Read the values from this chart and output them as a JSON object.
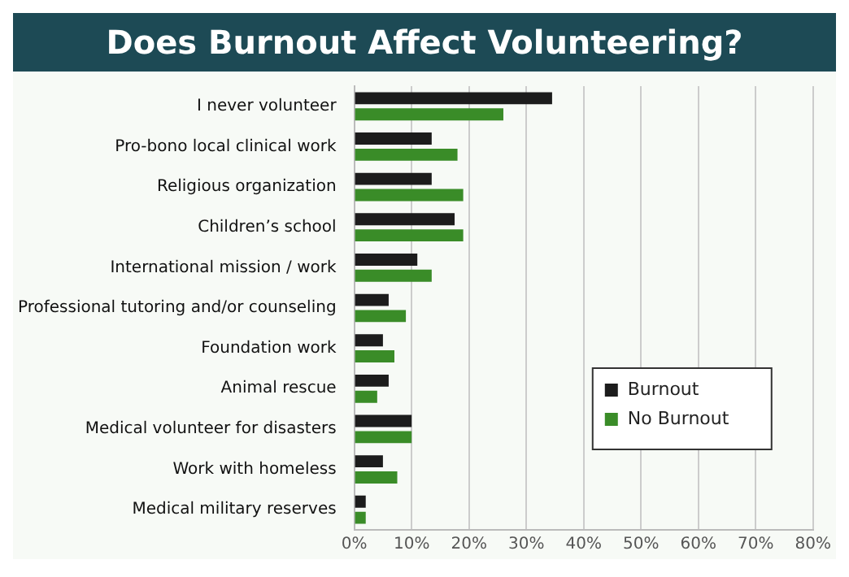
{
  "chart_data": {
    "type": "bar",
    "orientation": "horizontal",
    "title": "Does Burnout Affect Volunteering?",
    "categories": [
      "I never volunteer",
      "Pro-bono local clinical work",
      "Religious organization",
      "Children’s school",
      "International mission / work",
      "Professional tutoring and/or counseling",
      "Foundation work",
      "Animal rescue",
      "Medical volunteer for disasters",
      "Work with homeless",
      "Medical military reserves"
    ],
    "series": [
      {
        "name": "Burnout",
        "color": "#1c1c1c",
        "values": [
          34.5,
          13.5,
          13.5,
          17.5,
          11,
          6,
          5,
          6,
          10,
          5,
          2
        ]
      },
      {
        "name": "No Burnout",
        "color": "#3a8c28",
        "values": [
          26,
          18,
          19,
          19,
          13.5,
          9,
          7,
          4,
          10,
          7.5,
          2
        ]
      }
    ],
    "xlim": [
      0,
      80
    ],
    "xticks": [
      {
        "value": 0,
        "label": "0%"
      },
      {
        "value": 10,
        "label": "10%"
      },
      {
        "value": 20,
        "label": "20%"
      },
      {
        "value": 30,
        "label": "30%"
      },
      {
        "value": 40,
        "label": "40%"
      },
      {
        "value": 50,
        "label": "50%"
      },
      {
        "value": 60,
        "label": "60%"
      },
      {
        "value": 70,
        "label": "70%"
      },
      {
        "value": 80,
        "label": "80%"
      }
    ],
    "grid": "x",
    "legend": "bottom right"
  }
}
